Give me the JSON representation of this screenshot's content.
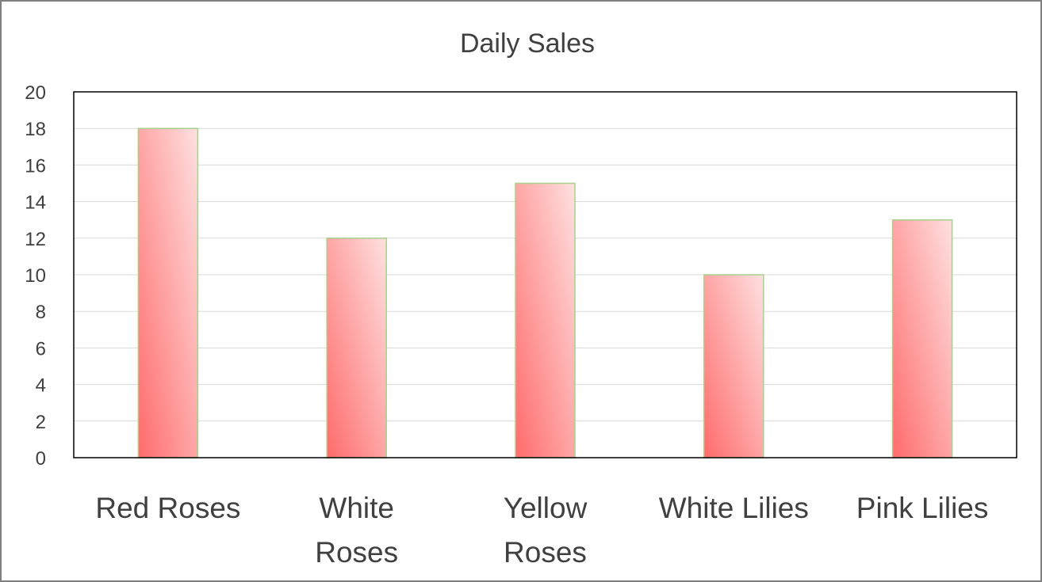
{
  "chart_data": {
    "type": "bar",
    "title": "Daily Sales",
    "xlabel": "",
    "ylabel": "",
    "categories": [
      [
        "Red Roses"
      ],
      [
        "White",
        "Roses"
      ],
      [
        "Yellow",
        "Roses"
      ],
      [
        "White Lilies"
      ],
      [
        "Pink Lilies"
      ]
    ],
    "values": [
      18,
      12,
      15,
      10,
      13
    ],
    "ylim": [
      0,
      20
    ],
    "ytick_step": 2,
    "grid": true,
    "legend": "none",
    "colors": {
      "bar_light": "#ffe0e0",
      "bar_dark": "#ff6b6b",
      "bar_border": "#a8d08d",
      "grid": "#d9d9d9",
      "plot_border": "#000000",
      "text": "#404040"
    }
  }
}
